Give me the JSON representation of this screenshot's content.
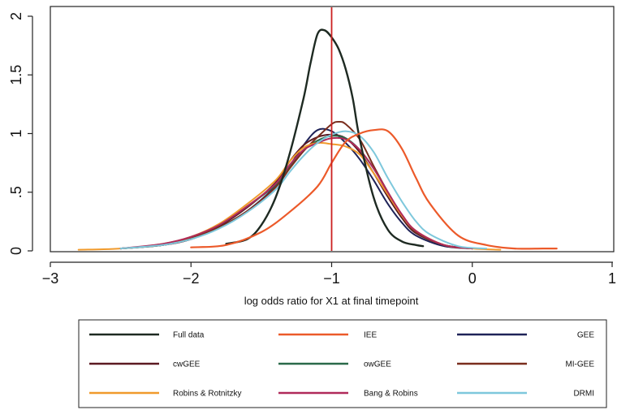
{
  "chart_data": {
    "type": "line",
    "title": "",
    "xlabel": "log odds ratio for X1 at final timepoint",
    "ylabel": "",
    "xlim": [
      -3,
      1
    ],
    "ylim": [
      0,
      2
    ],
    "xticks": [
      "−3",
      "−2",
      "−1",
      "0",
      "1"
    ],
    "xtick_values": [
      -3,
      -2,
      -1,
      0,
      1
    ],
    "yticks": [
      "0",
      ".5",
      "1",
      "1.5",
      "2"
    ],
    "ytick_values": [
      0,
      0.5,
      1,
      1.5,
      2
    ],
    "grid": false,
    "legend_position": "bottom",
    "reference_line": {
      "x": -1.0,
      "color": "#cc2020"
    },
    "series": [
      {
        "name": "Full data",
        "color": "#1e2a22",
        "width": 2.4,
        "x": [
          -1.75,
          -1.6,
          -1.5,
          -1.4,
          -1.3,
          -1.2,
          -1.15,
          -1.1,
          -1.05,
          -1.0,
          -0.95,
          -0.9,
          -0.85,
          -0.8,
          -0.7,
          -0.6,
          -0.5,
          -0.4,
          -0.35
        ],
        "y": [
          0.06,
          0.1,
          0.22,
          0.45,
          0.82,
          1.3,
          1.6,
          1.85,
          1.88,
          1.82,
          1.72,
          1.55,
          1.3,
          0.95,
          0.45,
          0.18,
          0.08,
          0.05,
          0.04
        ]
      },
      {
        "name": "IEE",
        "color": "#ec5a2a",
        "width": 2.2,
        "x": [
          -2.0,
          -1.75,
          -1.5,
          -1.3,
          -1.1,
          -1.0,
          -0.9,
          -0.8,
          -0.7,
          -0.6,
          -0.5,
          -0.4,
          -0.3,
          -0.1,
          0.1,
          0.3,
          0.5,
          0.6
        ],
        "y": [
          0.03,
          0.05,
          0.16,
          0.33,
          0.55,
          0.75,
          0.93,
          1.0,
          1.03,
          1.02,
          0.87,
          0.62,
          0.4,
          0.13,
          0.05,
          0.02,
          0.02,
          0.02
        ]
      },
      {
        "name": "GEE",
        "color": "#1f2358",
        "width": 2.0,
        "x": [
          -2.5,
          -2.2,
          -2.0,
          -1.8,
          -1.6,
          -1.4,
          -1.3,
          -1.2,
          -1.1,
          -1.0,
          -0.9,
          -0.8,
          -0.7,
          -0.6,
          -0.5,
          -0.4,
          -0.2,
          0.0
        ],
        "y": [
          0.02,
          0.05,
          0.1,
          0.2,
          0.34,
          0.55,
          0.72,
          0.9,
          1.03,
          1.02,
          0.92,
          0.78,
          0.6,
          0.4,
          0.24,
          0.13,
          0.04,
          0.02
        ]
      },
      {
        "name": "cwGEE",
        "color": "#5c1a22",
        "width": 2.0,
        "x": [
          -2.5,
          -2.2,
          -2.0,
          -1.8,
          -1.6,
          -1.4,
          -1.3,
          -1.2,
          -1.1,
          -1.0,
          -0.9,
          -0.8,
          -0.7,
          -0.6,
          -0.5,
          -0.4,
          -0.2,
          0.0
        ],
        "y": [
          0.02,
          0.05,
          0.1,
          0.21,
          0.37,
          0.58,
          0.76,
          0.9,
          0.97,
          0.99,
          0.96,
          0.84,
          0.66,
          0.46,
          0.28,
          0.15,
          0.05,
          0.02
        ]
      },
      {
        "name": "owGEE",
        "color": "#2a6a4a",
        "width": 2.0,
        "x": [
          -2.5,
          -2.2,
          -2.0,
          -1.8,
          -1.6,
          -1.4,
          -1.3,
          -1.2,
          -1.1,
          -1.0,
          -0.9,
          -0.8,
          -0.7,
          -0.6,
          -0.5,
          -0.4,
          -0.2,
          0.0
        ],
        "y": [
          0.02,
          0.05,
          0.12,
          0.22,
          0.38,
          0.56,
          0.72,
          0.86,
          0.94,
          0.98,
          0.96,
          0.86,
          0.7,
          0.5,
          0.3,
          0.16,
          0.05,
          0.02
        ]
      },
      {
        "name": "MI-GEE",
        "color": "#7a2e1e",
        "width": 2.0,
        "x": [
          -2.5,
          -2.2,
          -2.0,
          -1.8,
          -1.6,
          -1.4,
          -1.3,
          -1.2,
          -1.1,
          -1.0,
          -0.95,
          -0.9,
          -0.8,
          -0.7,
          -0.6,
          -0.5,
          -0.4,
          -0.2,
          0.0
        ],
        "y": [
          0.02,
          0.05,
          0.11,
          0.2,
          0.34,
          0.54,
          0.7,
          0.85,
          0.97,
          1.08,
          1.1,
          1.08,
          0.95,
          0.72,
          0.5,
          0.3,
          0.16,
          0.05,
          0.02
        ]
      },
      {
        "name": "Robins & Rotnitzky",
        "color": "#f09a2c",
        "width": 2.0,
        "x": [
          -2.8,
          -2.5,
          -2.2,
          -2.0,
          -1.8,
          -1.6,
          -1.4,
          -1.3,
          -1.2,
          -1.1,
          -1.0,
          -0.9,
          -0.8,
          -0.7,
          -0.6,
          -0.5,
          -0.4,
          -0.2,
          0.0,
          0.2
        ],
        "y": [
          0.01,
          0.02,
          0.06,
          0.12,
          0.23,
          0.4,
          0.6,
          0.76,
          0.88,
          0.92,
          0.91,
          0.89,
          0.82,
          0.66,
          0.48,
          0.3,
          0.17,
          0.05,
          0.02,
          0.01
        ]
      },
      {
        "name": "Bang & Robins",
        "color": "#b02a5a",
        "width": 2.0,
        "x": [
          -2.5,
          -2.2,
          -2.0,
          -1.8,
          -1.6,
          -1.4,
          -1.3,
          -1.2,
          -1.1,
          -1.0,
          -0.9,
          -0.8,
          -0.7,
          -0.6,
          -0.5,
          -0.4,
          -0.2,
          0.0
        ],
        "y": [
          0.02,
          0.06,
          0.12,
          0.22,
          0.38,
          0.57,
          0.73,
          0.86,
          0.92,
          0.96,
          0.95,
          0.86,
          0.7,
          0.5,
          0.31,
          0.17,
          0.05,
          0.02
        ]
      },
      {
        "name": "DRMI",
        "color": "#7ec8dc",
        "width": 2.0,
        "x": [
          -2.5,
          -2.2,
          -2.0,
          -1.8,
          -1.6,
          -1.4,
          -1.3,
          -1.2,
          -1.1,
          -1.0,
          -0.9,
          -0.8,
          -0.7,
          -0.6,
          -0.5,
          -0.4,
          -0.3,
          -0.1,
          0.1
        ],
        "y": [
          0.02,
          0.05,
          0.1,
          0.19,
          0.33,
          0.52,
          0.67,
          0.81,
          0.92,
          0.99,
          1.02,
          0.98,
          0.84,
          0.62,
          0.42,
          0.25,
          0.14,
          0.04,
          0.02
        ]
      }
    ]
  }
}
